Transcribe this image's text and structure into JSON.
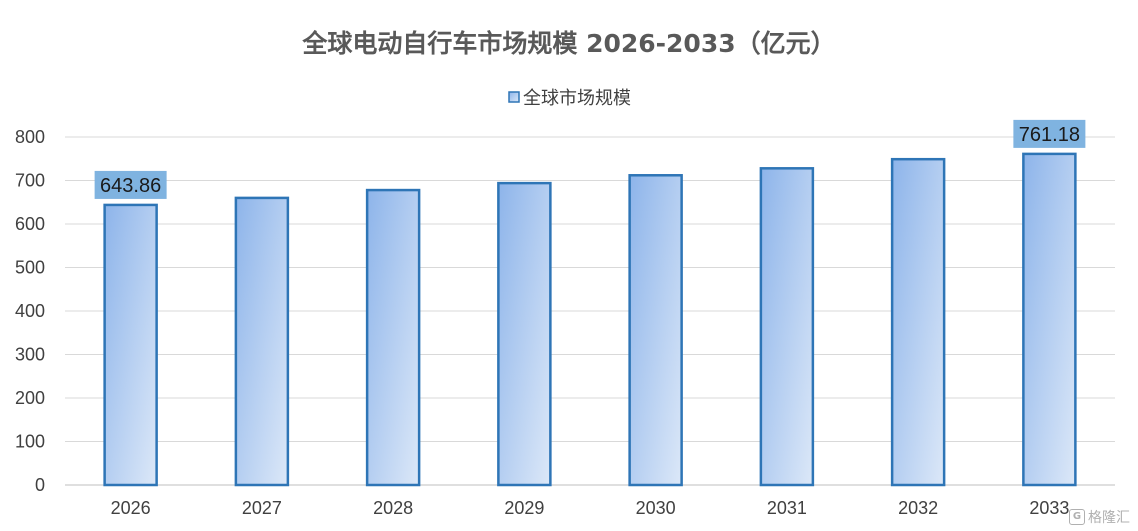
{
  "chart_data": {
    "type": "bar",
    "title": "全球电动自行车市场规模 2026-2033（亿元）",
    "xlabel": "",
    "ylabel": "",
    "categories": [
      "2026",
      "2027",
      "2028",
      "2029",
      "2030",
      "2031",
      "2032",
      "2033"
    ],
    "series": [
      {
        "name": "全球市场规模",
        "values": [
          643.86,
          660,
          678,
          694,
          712,
          728,
          749,
          761.18
        ]
      }
    ],
    "data_labels": [
      {
        "index": 0,
        "text": "643.86"
      },
      {
        "index": 7,
        "text": "761.18"
      }
    ],
    "ylim": [
      0,
      800
    ],
    "yticks": [
      0,
      100,
      200,
      300,
      400,
      500,
      600,
      700,
      800
    ],
    "grid": true,
    "legend_position": "top-center",
    "colors": {
      "bar_fill_start": "#8db4ea",
      "bar_fill_end": "#dce8f8",
      "bar_stroke": "#2e75b6",
      "label_box": "#7fb3e0",
      "grid": "#d9d9d9",
      "axis": "#bfbfbf"
    }
  },
  "watermark": {
    "icon": "gelonghui-logo-icon",
    "text": "格隆汇"
  }
}
